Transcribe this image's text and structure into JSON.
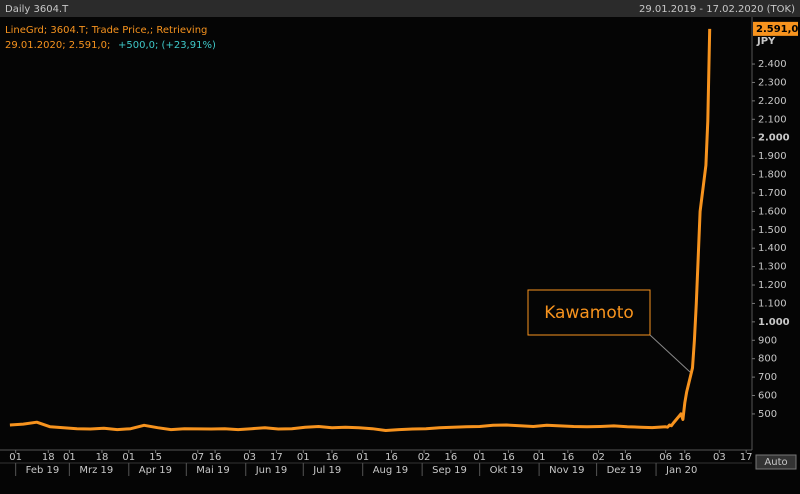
{
  "header": {
    "title": "Daily 3604.T",
    "range": "29.01.2019 - 17.02.2020 (TOK)"
  },
  "chart_data": {
    "type": "line",
    "legend": [
      "LineGrd; 3604.T; Trade Price,; Retrieving",
      "29.01.2020; 2.591,0;",
      "+500,0; (+23,91%)"
    ],
    "annotation": "Kawamoto",
    "y_unit": "JPY",
    "last_price_label": "2.591,0",
    "series": [
      {
        "name": "3604.T",
        "color": "#f7931e",
        "x": [
          "2019-01-29",
          "2019-02-05",
          "2019-02-12",
          "2019-02-19",
          "2019-02-26",
          "2019-03-05",
          "2019-03-12",
          "2019-03-19",
          "2019-03-26",
          "2019-04-02",
          "2019-04-09",
          "2019-04-16",
          "2019-04-23",
          "2019-04-30",
          "2019-05-14",
          "2019-05-21",
          "2019-05-28",
          "2019-06-04",
          "2019-06-11",
          "2019-06-18",
          "2019-06-25",
          "2019-07-02",
          "2019-07-09",
          "2019-07-16",
          "2019-07-23",
          "2019-07-30",
          "2019-08-06",
          "2019-08-13",
          "2019-08-20",
          "2019-08-27",
          "2019-09-03",
          "2019-09-10",
          "2019-09-17",
          "2019-09-24",
          "2019-10-01",
          "2019-10-08",
          "2019-10-15",
          "2019-10-22",
          "2019-10-29",
          "2019-11-05",
          "2019-11-12",
          "2019-11-19",
          "2019-11-26",
          "2019-12-03",
          "2019-12-10",
          "2019-12-17",
          "2019-12-24",
          "2019-12-30",
          "2020-01-06",
          "2020-01-07",
          "2020-01-08",
          "2020-01-09",
          "2020-01-10",
          "2020-01-14",
          "2020-01-15",
          "2020-01-16",
          "2020-01-17",
          "2020-01-20",
          "2020-01-21",
          "2020-01-22",
          "2020-01-23",
          "2020-01-24",
          "2020-01-27",
          "2020-01-28",
          "2020-01-29"
        ],
        "values": [
          440,
          445,
          455,
          430,
          425,
          420,
          418,
          422,
          415,
          420,
          438,
          425,
          415,
          420,
          418,
          420,
          415,
          420,
          425,
          418,
          420,
          428,
          432,
          425,
          428,
          425,
          420,
          410,
          415,
          418,
          420,
          425,
          428,
          430,
          432,
          438,
          440,
          436,
          432,
          438,
          435,
          432,
          430,
          432,
          435,
          430,
          428,
          426,
          430,
          428,
          440,
          436,
          450,
          500,
          470,
          560,
          620,
          750,
          900,
          1100,
          1350,
          1600,
          1850,
          2091,
          2591
        ]
      }
    ],
    "xlim": [
      "2019-01-28",
      "2020-02-19"
    ],
    "ylim": [
      315,
      2650
    ],
    "yticks": [
      500,
      600,
      700,
      800,
      900,
      {
        "value": 1000,
        "label": "1.000"
      },
      {
        "value": 1100,
        "label": "1.100"
      },
      {
        "value": 1200,
        "label": "1.200"
      },
      {
        "value": 1300,
        "label": "1.300"
      },
      {
        "value": 1400,
        "label": "1.400"
      },
      {
        "value": 1500,
        "label": "1.500"
      },
      {
        "value": 1600,
        "label": "1.600"
      },
      {
        "value": 1700,
        "label": "1.700"
      },
      {
        "value": 1800,
        "label": "1.800"
      },
      {
        "value": 1900,
        "label": "1.900"
      },
      {
        "value": 2000,
        "label": "2.000"
      },
      {
        "value": 2100,
        "label": "2.100"
      },
      {
        "value": 2200,
        "label": "2.200"
      },
      {
        "value": 2300,
        "label": "2.300"
      },
      {
        "value": 2400,
        "label": "2.400"
      }
    ],
    "xticks": [
      {
        "value": "2019-02-01",
        "label": "01"
      },
      {
        "value": "2019-02-18",
        "label": "18"
      },
      {
        "value": "2019-03-01",
        "label": "01"
      },
      {
        "value": "2019-03-18",
        "label": "18"
      },
      {
        "value": "2019-04-01",
        "label": "01"
      },
      {
        "value": "2019-04-15",
        "label": "15"
      },
      {
        "value": "2019-05-07",
        "label": "07"
      },
      {
        "value": "2019-05-16",
        "label": "16"
      },
      {
        "value": "2019-06-03",
        "label": "03"
      },
      {
        "value": "2019-06-17",
        "label": "17"
      },
      {
        "value": "2019-07-01",
        "label": "01"
      },
      {
        "value": "2019-07-16",
        "label": "16"
      },
      {
        "value": "2019-08-01",
        "label": "01"
      },
      {
        "value": "2019-08-16",
        "label": "16"
      },
      {
        "value": "2019-09-02",
        "label": "02"
      },
      {
        "value": "2019-09-16",
        "label": "16"
      },
      {
        "value": "2019-10-01",
        "label": "01"
      },
      {
        "value": "2019-10-16",
        "label": "16"
      },
      {
        "value": "2019-11-01",
        "label": "01"
      },
      {
        "value": "2019-11-16",
        "label": "16"
      },
      {
        "value": "2019-12-02",
        "label": "02"
      },
      {
        "value": "2019-12-16",
        "label": "16"
      },
      {
        "value": "2020-01-06",
        "label": "06"
      },
      {
        "value": "2020-01-16",
        "label": "16"
      },
      {
        "value": "2020-02-03",
        "label": "03"
      },
      {
        "value": "2020-02-17",
        "label": "17"
      }
    ],
    "months": [
      {
        "value": "2019-02-01",
        "label": "Feb 19"
      },
      {
        "value": "2019-03-01",
        "label": "Mrz 19"
      },
      {
        "value": "2019-04-01",
        "label": "Apr 19"
      },
      {
        "value": "2019-05-01",
        "label": "Mai 19"
      },
      {
        "value": "2019-06-01",
        "label": "Jun 19"
      },
      {
        "value": "2019-07-01",
        "label": "Jul 19"
      },
      {
        "value": "2019-08-01",
        "label": "Aug 19"
      },
      {
        "value": "2019-09-01",
        "label": "Sep 19"
      },
      {
        "value": "2019-10-01",
        "label": "Okt 19"
      },
      {
        "value": "2019-11-01",
        "label": "Nov 19"
      },
      {
        "value": "2019-12-01",
        "label": "Dez 19"
      },
      {
        "value": "2020-01-01",
        "label": "Jan 20"
      }
    ],
    "button": "Auto"
  }
}
